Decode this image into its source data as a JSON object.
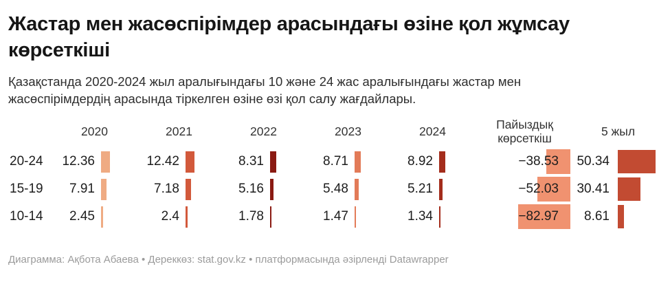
{
  "title": "Жастар мен жасөспірімдер арасындағы өзіне қол жұмсау көрсеткіші",
  "subtitle": "Қазақстанда 2020-2024 жыл аралығындағы 10 және 24 жас аралығындағы жастар мен жасөспірімдердің арасында тіркелген өзіне өзі қол салу жағдайлары.",
  "table": {
    "headers": [
      "2020",
      "2021",
      "2022",
      "2023",
      "2024",
      "Пайыздық көрсеткіш",
      "5 жыл"
    ],
    "rows": [
      {
        "label": "20-24",
        "cells": [
          "12.36",
          "12.42",
          "8.31",
          "8.71",
          "8.92"
        ],
        "percent": "−38.53",
        "five_year": "50.34"
      },
      {
        "label": "15-19",
        "cells": [
          "7.91",
          "7.18",
          "5.16",
          "5.48",
          "5.21"
        ],
        "percent": "−52.03",
        "five_year": "30.41"
      },
      {
        "label": "10-14",
        "cells": [
          "2.45",
          "2.4",
          "1.78",
          "1.47",
          "1.34"
        ],
        "percent": "−82.97",
        "five_year": "8.61"
      }
    ]
  },
  "colors": {
    "y2020": "#efab83",
    "y2021": "#d2593b",
    "y2022": "#8a1a12",
    "y2023": "#e27b58",
    "y2024": "#a42d1c",
    "percent_highlight": "#f09270",
    "five_year": "#c24b32"
  },
  "footer": {
    "chart_credit": "Диаграмма: Ақбота Абаева",
    "separator": "•",
    "source_label": "Дереккөз:",
    "source_link": "stat.gov.kz",
    "attribution": "платформасында әзірленді",
    "platform_link": "Datawrapper"
  },
  "chart_data": {
    "type": "table",
    "title": "Жастар мен жасөспірімдер арасындағы өзіне қол жұмсау көрсеткіші",
    "subtitle": "Қазақстанда 2020-2024 жыл аралығындағы 10 және 24 жас аралығындағы жастар мен жасөспірімдердің арасында тіркелген өзіне өзі қол салу жағдайлары.",
    "categories": [
      "20-24",
      "15-19",
      "10-14"
    ],
    "columns": [
      "2020",
      "2021",
      "2022",
      "2023",
      "2024",
      "Пайыздық көрсеткіш",
      "5 жыл"
    ],
    "series": [
      {
        "name": "20-24",
        "values": [
          12.36,
          12.42,
          8.31,
          8.71,
          8.92
        ],
        "percent_change": -38.53,
        "five_year": 50.34
      },
      {
        "name": "15-19",
        "values": [
          7.91,
          7.18,
          5.16,
          5.48,
          5.21
        ],
        "percent_change": -52.03,
        "five_year": 30.41
      },
      {
        "name": "10-14",
        "values": [
          2.45,
          2.4,
          1.78,
          1.47,
          1.34
        ],
        "percent_change": -82.97,
        "five_year": 8.61
      }
    ],
    "source": "stat.gov.kz",
    "legend_position": "none",
    "grid": false
  }
}
